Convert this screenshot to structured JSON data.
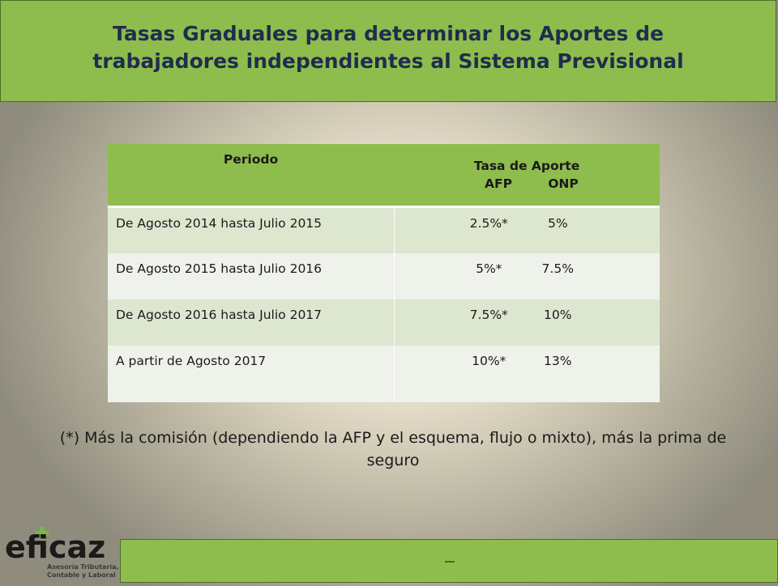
{
  "header": {
    "title": "Tasas Graduales para determinar los Aportes de trabajadores independientes al Sistema Previsional"
  },
  "table": {
    "col_periodo": "Periodo",
    "col_tasa": "Tasa de Aporte",
    "sub_afp": "AFP",
    "sub_onp": "ONP",
    "rows": [
      {
        "periodo": "De Agosto 2014 hasta Julio 2015",
        "afp": "2.5%*",
        "onp": "5%"
      },
      {
        "periodo": "De Agosto 2015 hasta Julio 2016",
        "afp": "5%*",
        "onp": "7.5%"
      },
      {
        "periodo": "De Agosto 2016 hasta Julio 2017",
        "afp": "7.5%*",
        "onp": "10%"
      },
      {
        "periodo": "A partir de Agosto 2017",
        "afp": "10%*",
        "onp": "13%"
      }
    ]
  },
  "footnote": "(*) Más la comisión (dependiendo la AFP y el esquema, flujo o mixto), más la prima de seguro",
  "logo": {
    "brand": "eficaz",
    "tagline_1": "Asesoría Tributaria,",
    "tagline_2": "Contable y Laboral"
  },
  "colors": {
    "header_green": "#8fbd4d",
    "title_navy": "#1f2d4d",
    "row_dark": "#dde7d0",
    "row_light": "#eef2ea",
    "logo_cross_green": "#7ab648"
  },
  "icons": {
    "logo_cross": "green-cross-icon"
  }
}
